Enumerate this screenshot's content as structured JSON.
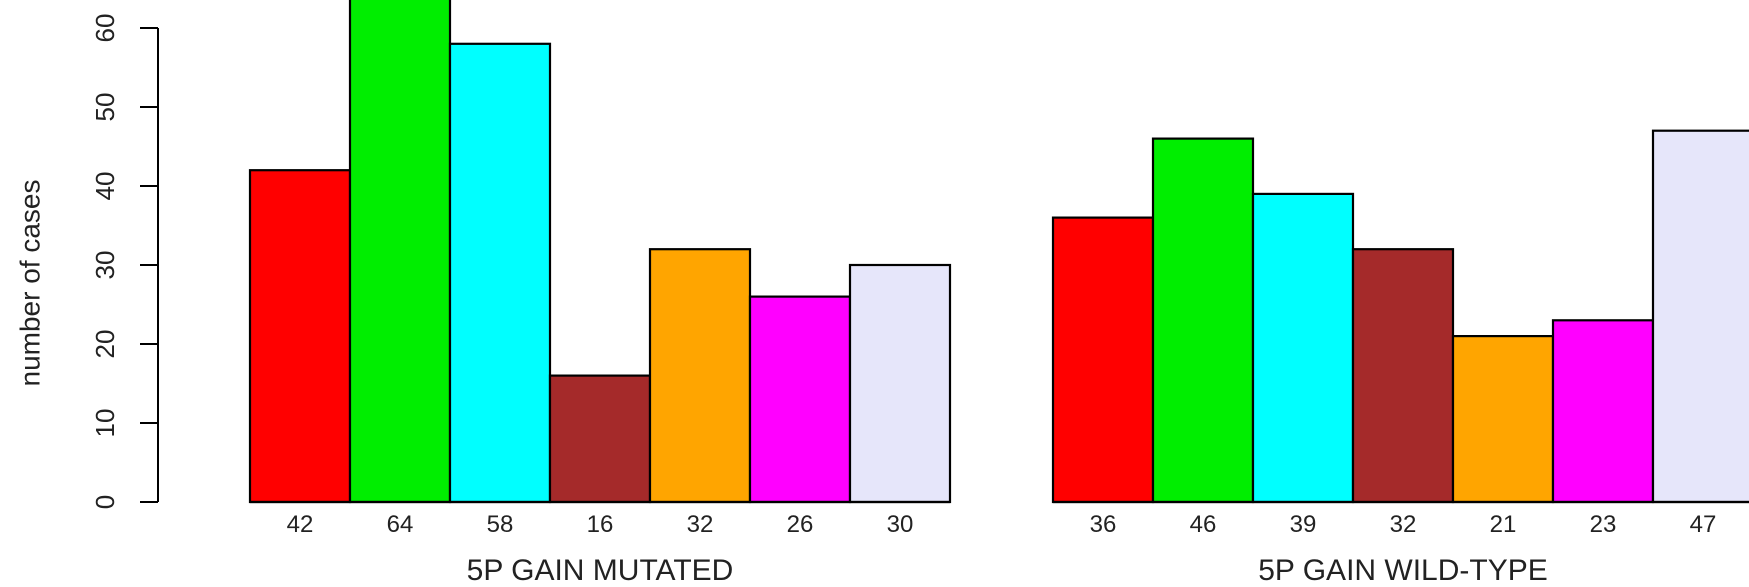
{
  "chart_data": {
    "type": "bar",
    "ylabel": "number of cases",
    "ylim": [
      0,
      60
    ],
    "yticks": [
      0,
      10,
      20,
      30,
      40,
      50,
      60
    ],
    "series_colors": [
      "#ff0000",
      "#00ee00",
      "#00ffff",
      "#a52a2a",
      "#ffa500",
      "#ff00ff",
      "#e6e6fa"
    ],
    "groups": [
      {
        "label": "5P GAIN MUTATED",
        "values": [
          42,
          64,
          58,
          16,
          32,
          26,
          30
        ],
        "value_labels": [
          "42",
          "64",
          "58",
          "16",
          "32",
          "26",
          "30"
        ]
      },
      {
        "label": "5P GAIN WILD-TYPE",
        "values": [
          36,
          46,
          39,
          32,
          21,
          23,
          47
        ],
        "value_labels": [
          "36",
          "46",
          "39",
          "32",
          "21",
          "23",
          "47"
        ]
      }
    ]
  }
}
